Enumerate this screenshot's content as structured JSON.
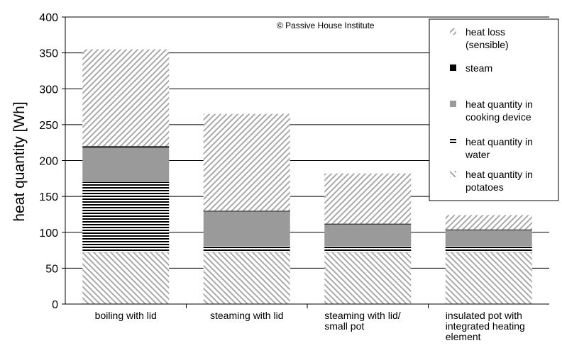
{
  "chart_data": {
    "type": "bar",
    "stacked": true,
    "categories": [
      [
        "boiling with lid"
      ],
      [
        "steaming with lid"
      ],
      [
        "steaming with lid/",
        "small pot"
      ],
      [
        "insulated pot with",
        "integrated heating",
        "element"
      ]
    ],
    "ylabel": "heat quantity [Wh]",
    "xlabel": "",
    "ylim": [
      0,
      400
    ],
    "yticks": [
      0,
      50,
      100,
      150,
      200,
      250,
      300,
      350,
      400
    ],
    "grid": true,
    "legend_position": "top-right",
    "annotation": "© Passive House Institute",
    "series": [
      {
        "name": "heat quantity in potatoes",
        "legend_lines": [
          "heat quantity in",
          "potatoes"
        ],
        "pattern": "diag-back",
        "values": [
          72,
          72,
          72,
          72
        ]
      },
      {
        "name": "heat quantity in water",
        "legend_lines": [
          "heat quantity in",
          "water"
        ],
        "pattern": "hstripes",
        "values": [
          98,
          9,
          9,
          9
        ]
      },
      {
        "name": "heat quantity in cooking device",
        "legend_lines": [
          "heat quantity in",
          "cooking device"
        ],
        "pattern": "solid-gray",
        "values": [
          48,
          48,
          30,
          22
        ]
      },
      {
        "name": "steam",
        "legend_lines": [
          "steam"
        ],
        "pattern": "solid-black",
        "values": [
          2,
          1,
          1,
          1
        ]
      },
      {
        "name": "heat loss (sensible)",
        "legend_lines": [
          "heat loss",
          "(sensible)"
        ],
        "pattern": "diag-fwd",
        "values": [
          135,
          135,
          70,
          20
        ]
      }
    ],
    "legend_order": [
      4,
      3,
      2,
      1,
      0
    ],
    "colors": {
      "gray": "#9a9a9a",
      "hatch": "#a8a8a8",
      "black": "#000000",
      "grid": "#000000"
    }
  }
}
